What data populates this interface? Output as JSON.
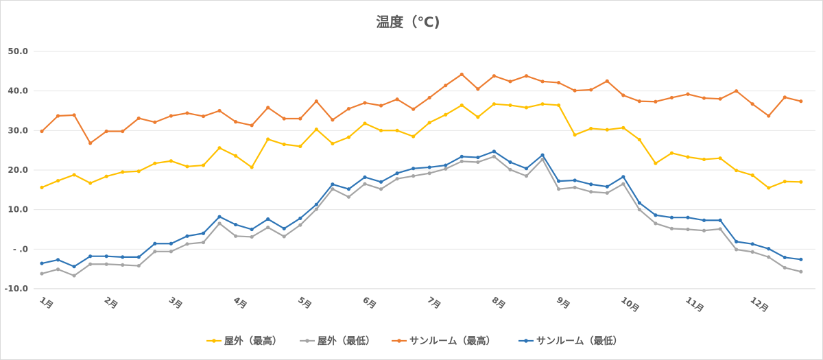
{
  "chart_data": {
    "type": "line",
    "title": "温度（℃)",
    "ylim": [
      -10,
      50
    ],
    "y_ticks": [
      50,
      40,
      30,
      20,
      10,
      0,
      -10
    ],
    "y_tick_labels": [
      "50.0",
      "40.0",
      "30.0",
      "20.0",
      "10.0",
      "- .0",
      "-10.0"
    ],
    "x_tick_labels": [
      "1月",
      "2月",
      "3月",
      "4月",
      "5月",
      "6月",
      "7月",
      "8月",
      "9月",
      "10月",
      "11月",
      "12月"
    ],
    "points_per_month": 4,
    "grid": true,
    "legend_position": "bottom",
    "series": [
      {
        "name": "屋外（最高）",
        "color": "#ffc000",
        "values": [
          15.6,
          17.3,
          18.8,
          16.7,
          18.4,
          19.5,
          19.7,
          21.7,
          22.3,
          20.9,
          21.2,
          25.6,
          23.6,
          20.7,
          27.8,
          26.5,
          26.0,
          30.3,
          26.7,
          28.3,
          31.8,
          30.0,
          30.0,
          28.5,
          32.0,
          34.0,
          36.4,
          33.4,
          36.7,
          36.4,
          35.8,
          36.7,
          36.4,
          28.9,
          30.5,
          30.2,
          30.7,
          27.7,
          21.7,
          24.3,
          23.3,
          22.7,
          23.0,
          19.9,
          18.7,
          15.5,
          17.1,
          17.0
        ]
      },
      {
        "name": "屋外（最低）",
        "color": "#a5a5a5",
        "values": [
          -6.2,
          -5.1,
          -6.7,
          -3.8,
          -3.8,
          -4.0,
          -4.2,
          -0.6,
          -0.6,
          1.3,
          1.7,
          6.5,
          3.3,
          3.1,
          5.5,
          3.2,
          6.1,
          10.1,
          15.2,
          13.2,
          16.5,
          15.2,
          17.8,
          18.5,
          19.2,
          20.3,
          22.2,
          22.0,
          23.4,
          20.1,
          18.5,
          22.7,
          15.2,
          15.6,
          14.5,
          14.2,
          16.5,
          10.0,
          6.5,
          5.2,
          5.0,
          4.7,
          5.1,
          -0.1,
          -0.7,
          -2.0,
          -4.7,
          -5.7
        ]
      },
      {
        "name": "サンルーム（最高）",
        "color": "#ed7d31",
        "values": [
          29.8,
          33.7,
          33.9,
          26.8,
          29.8,
          29.8,
          33.1,
          32.1,
          33.7,
          34.4,
          33.6,
          35.0,
          32.2,
          31.3,
          35.8,
          33.0,
          33.0,
          37.4,
          32.7,
          35.5,
          37.0,
          36.3,
          37.9,
          35.4,
          38.3,
          41.4,
          44.2,
          40.5,
          43.8,
          42.4,
          43.8,
          42.4,
          42.1,
          40.1,
          40.3,
          42.5,
          38.9,
          37.4,
          37.3,
          38.3,
          39.2,
          38.2,
          38.0,
          40.0,
          36.7,
          33.7,
          38.4,
          37.4
        ]
      },
      {
        "name": "サンルーム（最低）",
        "color": "#2e75b6",
        "values": [
          -3.6,
          -2.7,
          -4.4,
          -1.8,
          -1.8,
          -2.0,
          -2.0,
          1.4,
          1.4,
          3.3,
          4.0,
          8.2,
          6.2,
          5.0,
          7.6,
          5.2,
          7.8,
          11.3,
          16.4,
          15.2,
          18.2,
          17.0,
          19.2,
          20.4,
          20.7,
          21.2,
          23.4,
          23.2,
          24.7,
          22.0,
          20.4,
          23.8,
          17.2,
          17.4,
          16.4,
          15.8,
          18.3,
          11.7,
          8.6,
          8.0,
          8.0,
          7.3,
          7.3,
          1.9,
          1.3,
          0.1,
          -2.1,
          -2.6
        ]
      }
    ]
  }
}
